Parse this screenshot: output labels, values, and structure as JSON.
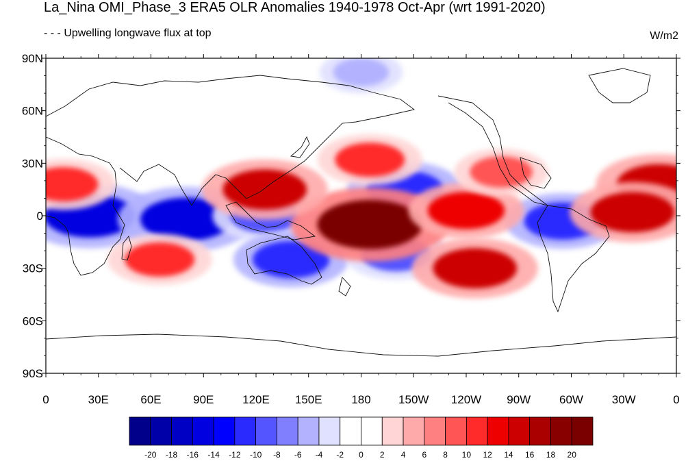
{
  "title": "La_Nina OMI_Phase_3 ERA5 OLR Anomalies 1940-1978 Oct-Apr (wrt 1991-2020)",
  "subtitle": "- - - Upwelling longwave flux at top",
  "units": "W/m2",
  "map": {
    "lat_ticks": [
      "90N",
      "60N",
      "30N",
      "0",
      "30S",
      "60S",
      "90S"
    ],
    "lon_ticks": [
      "0",
      "30E",
      "60E",
      "90E",
      "120E",
      "150E",
      "180",
      "150W",
      "120W",
      "90W",
      "60W",
      "30W",
      "0"
    ],
    "colors": {
      "ocean_bg": "#ffffff",
      "coast": "#111111"
    },
    "anomalies": [
      {
        "name": "south-atlantic-africa-neg",
        "lon": 25,
        "lat": 0,
        "value": -16
      },
      {
        "name": "indian-ocean-neg",
        "lon": 80,
        "lat": -2,
        "value": -16
      },
      {
        "name": "maritime-continent-neg",
        "lon": 125,
        "lat": 0,
        "value": -10
      },
      {
        "name": "australia-neg",
        "lon": 140,
        "lat": -25,
        "value": -12
      },
      {
        "name": "north-pacific-neg",
        "lon": 205,
        "lat": 15,
        "value": -12
      },
      {
        "name": "south-pacific-neg",
        "lon": 200,
        "lat": -22,
        "value": -10
      },
      {
        "name": "amazon-neg",
        "lon": 295,
        "lat": -3,
        "value": -12
      },
      {
        "name": "arctic-neg",
        "lon": 180,
        "lat": 82,
        "value": -6
      },
      {
        "name": "equatorial-pacific-pos",
        "lon": 185,
        "lat": -5,
        "value": 20
      },
      {
        "name": "east-pacific-pos",
        "lon": 240,
        "lat": 3,
        "value": 12
      },
      {
        "name": "southeast-pacific-pos",
        "lon": 245,
        "lat": -30,
        "value": 14
      },
      {
        "name": "south-indian-pos",
        "lon": 65,
        "lat": -25,
        "value": 10
      },
      {
        "name": "arabia-north-africa-pos",
        "lon": 10,
        "lat": 18,
        "value": 10
      },
      {
        "name": "south-asia-pos",
        "lon": 125,
        "lat": 15,
        "value": 14
      },
      {
        "name": "central-north-pacific-pos",
        "lon": 185,
        "lat": 32,
        "value": 10
      },
      {
        "name": "gulf-mexico-pos",
        "lon": 260,
        "lat": 25,
        "value": 8
      },
      {
        "name": "west-africa-coast-pos",
        "lon": 350,
        "lat": 18,
        "value": 14
      },
      {
        "name": "atlantic-eq-pos",
        "lon": 335,
        "lat": 2,
        "value": 14
      }
    ]
  },
  "colorbar": {
    "labels": [
      "-20",
      "-18",
      "-16",
      "-14",
      "-12",
      "-10",
      "-8",
      "-6",
      "-4",
      "-2",
      "0",
      "2",
      "4",
      "6",
      "8",
      "10",
      "12",
      "14",
      "16",
      "18",
      "20"
    ],
    "colors": [
      "#00008b",
      "#0000a8",
      "#0000c4",
      "#0000e0",
      "#0000ff",
      "#2a2aff",
      "#5555ff",
      "#8080ff",
      "#b2b2ff",
      "#e0e0ff",
      "#ffffff",
      "#ffffff",
      "#ffd5d5",
      "#ffaaaa",
      "#ff8080",
      "#ff5555",
      "#ff2a2a",
      "#ee0000",
      "#cc0000",
      "#aa0000",
      "#880000",
      "#7a0000"
    ]
  }
}
